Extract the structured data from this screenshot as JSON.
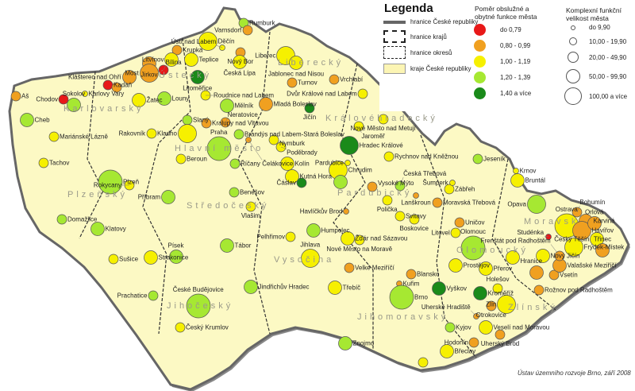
{
  "colors": {
    "map_fill": "#fcf9c4",
    "border": "#666666",
    "categories": [
      "#e81818",
      "#f0a020",
      "#f6f000",
      "#a6e832",
      "#1a8a1a"
    ]
  },
  "legend": {
    "title": "Legenda",
    "boundaries": [
      {
        "label": "hranice České republiky",
        "style": "thick-gray"
      },
      {
        "label": "hranice krajů",
        "style": "dash-dot"
      },
      {
        "label": "hranice okresů",
        "style": "dashed"
      },
      {
        "label": "kraje České republiky",
        "style": "fill"
      }
    ],
    "ratio_title_1": "Poměr obslužné a",
    "ratio_title_2": "obytné funkce města",
    "ratio_classes": [
      "do 0,79",
      "0,80 - 0,99",
      "1,00 - 1,19",
      "1,20 - 1,39",
      "1,40 a více"
    ],
    "size_title_1": "Komplexní funkční",
    "size_title_2": "velikost města",
    "size_classes": [
      "do 9,90",
      "10,00 - 19,90",
      "20,00 - 49,90",
      "50,00 - 99,90",
      "100,00 a více"
    ]
  },
  "regions": [
    "Karlovarský",
    "Ústecký",
    "Liberecký",
    "Královéhradecký",
    "Hlavní město",
    "Středočeský",
    "Plzeňský",
    "Jihočeský",
    "Vysočina",
    "Pardubický",
    "Jihomoravský",
    "Olomoucký",
    "Moravsk",
    "Zlínský"
  ],
  "cities": [
    {
      "name": "Rumburk",
      "ratio": 3,
      "size": 1
    },
    {
      "name": "Varnsdorf",
      "ratio": 1,
      "size": 1
    },
    {
      "name": "Děčín",
      "ratio": 2,
      "size": 3
    },
    {
      "name": "Krupka",
      "ratio": 1,
      "size": 1
    },
    {
      "name": "Teplice",
      "ratio": 2,
      "size": 2
    },
    {
      "name": "Litvínov",
      "ratio": 2,
      "size": 2
    },
    {
      "name": "Jirkov",
      "ratio": 1,
      "size": 2
    },
    {
      "name": "Most",
      "ratio": 1,
      "size": 3
    },
    {
      "name": "Bílina",
      "ratio": 0,
      "size": 1
    },
    {
      "name": "Klášterec nad Ohří",
      "ratio": 1,
      "size": 2
    },
    {
      "name": "Kadaň",
      "ratio": 0,
      "size": 1
    },
    {
      "name": "",
      "ratio": 1,
      "size": 1
    },
    {
      "name": "Aš",
      "ratio": 1,
      "size": 1
    },
    {
      "name": "Cheb",
      "ratio": 3,
      "size": 2
    },
    {
      "name": "Sokolov",
      "ratio": 3,
      "size": 2
    },
    {
      "name": "Chodov",
      "ratio": 0,
      "size": 1
    },
    {
      "name": "Karlovy Vary",
      "ratio": 2,
      "size": 0
    },
    {
      "name": "Žatec",
      "ratio": 2,
      "size": 2
    },
    {
      "name": "Louny",
      "ratio": 3,
      "size": 2
    },
    {
      "name": "Litoměřice",
      "ratio": 4,
      "size": 2
    },
    {
      "name": "Ústí nad Labem",
      "ratio": 2,
      "size": 0
    },
    {
      "name": "Nový Bor",
      "ratio": 1,
      "size": 1
    },
    {
      "name": "Česká Lípa",
      "ratio": 2,
      "size": 2
    },
    {
      "name": "Liberec",
      "ratio": 2,
      "size": 3
    },
    {
      "name": "Jablonec nad Nisou",
      "ratio": 2,
      "size": 2
    },
    {
      "name": "Turnov",
      "ratio": 1,
      "size": 1
    },
    {
      "name": "Vrchlabí",
      "ratio": 1,
      "size": 1
    },
    {
      "name": "Mladá Boleslav",
      "ratio": 1,
      "size": 2
    },
    {
      "name": "Roudnice nad Labem",
      "ratio": 2,
      "size": 1
    },
    {
      "name": "Mělník",
      "ratio": 3,
      "size": 2
    },
    {
      "name": "Jičín",
      "ratio": 4,
      "size": 1
    },
    {
      "name": "Dvůr Králové nad Labem",
      "ratio": 2,
      "size": 1
    },
    {
      "name": "Mariánské Lázně",
      "ratio": 2,
      "size": 1
    },
    {
      "name": "Tachov",
      "ratio": 2,
      "size": 1
    },
    {
      "name": "Slaný",
      "ratio": 3,
      "size": 1
    },
    {
      "name": "Kladno",
      "ratio": 2,
      "size": 3
    },
    {
      "name": "Rakovník",
      "ratio": 2,
      "size": 1
    },
    {
      "name": "Kralupy nad Vltavou",
      "ratio": 1,
      "size": 1
    },
    {
      "name": "Neratovice",
      "ratio": 1,
      "size": 1
    },
    {
      "name": "Brandýs nad Labem-Stará Boleslav",
      "ratio": 3,
      "size": 1
    },
    {
      "name": "Čelákovice",
      "ratio": 1,
      "size": 0
    },
    {
      "name": "Praha",
      "ratio": 3,
      "size": 4
    },
    {
      "name": "Beroun",
      "ratio": 2,
      "size": 1
    },
    {
      "name": "Říčany",
      "ratio": 3,
      "size": 1
    },
    {
      "name": "Nymburk",
      "ratio": 2,
      "size": 1
    },
    {
      "name": "Poděbrady",
      "ratio": 2,
      "size": 1
    },
    {
      "name": "Kolín",
      "ratio": 2,
      "size": 2
    },
    {
      "name": "Kutná Hora",
      "ratio": 2,
      "size": 2
    },
    {
      "name": "Čáslav",
      "ratio": 4,
      "size": 1
    },
    {
      "name": "Hradec Králové",
      "ratio": 4,
      "size": 3
    },
    {
      "name": "Pardubice",
      "ratio": 2,
      "size": 0
    },
    {
      "name": "Chrudim",
      "ratio": 2,
      "size": 3
    },
    {
      "name": "",
      "ratio": 3,
      "size": 2
    },
    {
      "name": "Plzeň",
      "ratio": 3,
      "size": 4
    },
    {
      "name": "Rokycany",
      "ratio": 2,
      "size": 1
    },
    {
      "name": "Příbram",
      "ratio": 3,
      "size": 2
    },
    {
      "name": "Benešov",
      "ratio": 3,
      "size": 1
    },
    {
      "name": "Domažlice",
      "ratio": 3,
      "size": 1
    },
    {
      "name": "Klatovy",
      "ratio": 3,
      "size": 2
    },
    {
      "name": "Sušice",
      "ratio": 2,
      "size": 1
    },
    {
      "name": "Strakonice",
      "ratio": 2,
      "size": 2
    },
    {
      "name": "Písek",
      "ratio": 3,
      "size": 2
    },
    {
      "name": "Tábor",
      "ratio": 3,
      "size": 2
    },
    {
      "name": "Vlašim",
      "ratio": 2,
      "size": 1
    },
    {
      "name": "Prachatice",
      "ratio": 3,
      "size": 1
    },
    {
      "name": "České Budějovice",
      "ratio": 3,
      "size": 4
    },
    {
      "name": "Český Krumlov",
      "ratio": 2,
      "size": 1
    },
    {
      "name": "Jindřichův Hradec",
      "ratio": 3,
      "size": 2
    },
    {
      "name": "Pelhřimov",
      "ratio": 2,
      "size": 1
    },
    {
      "name": "Humpolec",
      "ratio": 3,
      "size": 2
    },
    {
      "name": "Jihlava",
      "ratio": 2,
      "size": 3
    },
    {
      "name": "Havlíčkův Brod",
      "ratio": 1,
      "size": 0
    },
    {
      "name": "Žďár nad Sázavou",
      "ratio": 2,
      "size": 2
    },
    {
      "name": "Nové Město na Moravě",
      "ratio": 2,
      "size": 1
    },
    {
      "name": "Velké Meziříčí",
      "ratio": 1,
      "size": 1
    },
    {
      "name": "Třebíč",
      "ratio": 2,
      "size": 2
    },
    {
      "name": "Znojmo",
      "ratio": 3,
      "size": 2
    },
    {
      "name": "Rychnov nad Kněžnou",
      "ratio": 2,
      "size": 1
    },
    {
      "name": "Nové Město nad Metují",
      "ratio": 2,
      "size": 1
    },
    {
      "name": "Jaroměř",
      "ratio": 2,
      "size": 1
    },
    {
      "name": "Vysoké Mýto",
      "ratio": 1,
      "size": 1
    },
    {
      "name": "Česká Třebová",
      "ratio": 3,
      "size": 1
    },
    {
      "name": "Lanškroun",
      "ratio": 1,
      "size": 0
    },
    {
      "name": "Polička",
      "ratio": 2,
      "size": 1
    },
    {
      "name": "Svitavy",
      "ratio": 2,
      "size": 1
    },
    {
      "name": "Moravská Třebová",
      "ratio": 1,
      "size": 1
    },
    {
      "name": "Zábřeh",
      "ratio": 2,
      "size": 1
    },
    {
      "name": "Šumperk",
      "ratio": 2,
      "size": 0
    },
    {
      "name": "Jeseník",
      "ratio": 3,
      "size": 1
    },
    {
      "name": "Krnov",
      "ratio": 2,
      "size": 0
    },
    {
      "name": "Bruntál",
      "ratio": 2,
      "size": 2
    },
    {
      "name": "Opava",
      "ratio": 3,
      "size": 3
    },
    {
      "name": "Uničov",
      "ratio": 1,
      "size": 1
    },
    {
      "name": "Litovel",
      "ratio": 2,
      "size": 1
    },
    {
      "name": "Olomouc",
      "ratio": 3,
      "size": 4
    },
    {
      "name": "Boskovice",
      "ratio": 2,
      "size": 1
    },
    {
      "name": "Blansko",
      "ratio": 1,
      "size": 1
    },
    {
      "name": "Kuřim",
      "ratio": 1,
      "size": 0
    },
    {
      "name": "Brno",
      "ratio": 3,
      "size": 4
    },
    {
      "name": "Vyškov",
      "ratio": 4,
      "size": 2
    },
    {
      "name": "Prostějov",
      "ratio": 2,
      "size": 2
    },
    {
      "name": "Přerov",
      "ratio": 2,
      "size": 2
    },
    {
      "name": "Hranice",
      "ratio": 2,
      "size": 2
    },
    {
      "name": "Kroměříž",
      "ratio": 4,
      "size": 2
    },
    {
      "name": "Holešov",
      "ratio": 2,
      "size": 1
    },
    {
      "name": "Zlín",
      "ratio": 2,
      "size": 3
    },
    {
      "name": "Otrokovice",
      "ratio": 1,
      "size": 1
    },
    {
      "name": "Uherské Hradiště",
      "ratio": 1,
      "size": 0
    },
    {
      "name": "Kyjov",
      "ratio": 3,
      "size": 1
    },
    {
      "name": "Veselí nad Moravou",
      "ratio": 2,
      "size": 2
    },
    {
      "name": "Uherský Brod",
      "ratio": 1,
      "size": 1
    },
    {
      "name": "Hodonín",
      "ratio": 1,
      "size": 1
    },
    {
      "name": "Břeclav",
      "ratio": 2,
      "size": 2
    },
    {
      "name": "",
      "ratio": 2,
      "size": 1
    },
    {
      "name": "Vsetín",
      "ratio": 1,
      "size": 1
    },
    {
      "name": "",
      "ratio": 1,
      "size": 2
    },
    {
      "name": "Valašské Meziříčí",
      "ratio": 1,
      "size": 2
    },
    {
      "name": "Rožnov pod Radhoštěm",
      "ratio": 1,
      "size": 1
    },
    {
      "name": "Frenštát pod Radhoštěm",
      "ratio": 1,
      "size": 1
    },
    {
      "name": "Nový Jičín",
      "ratio": 2,
      "size": 2
    },
    {
      "name": "Studénka",
      "ratio": 0,
      "size": 0
    },
    {
      "name": "Ostrava",
      "ratio": 2,
      "size": 4
    },
    {
      "name": "Bohumín",
      "ratio": 1,
      "size": 1
    },
    {
      "name": "Karviná",
      "ratio": 1,
      "size": 2
    },
    {
      "name": "Havířov",
      "ratio": 1,
      "size": 3
    },
    {
      "name": "Orlová",
      "ratio": 1,
      "size": 2
    },
    {
      "name": "Frýdek-Místek",
      "ratio": 2,
      "size": 3
    },
    {
      "name": "Český Těšín",
      "ratio": 2,
      "size": 2
    },
    {
      "name": "Třinec",
      "ratio": 1,
      "size": 2
    }
  ],
  "credit": "Ústav územního rozvoje Brno, září 2008"
}
